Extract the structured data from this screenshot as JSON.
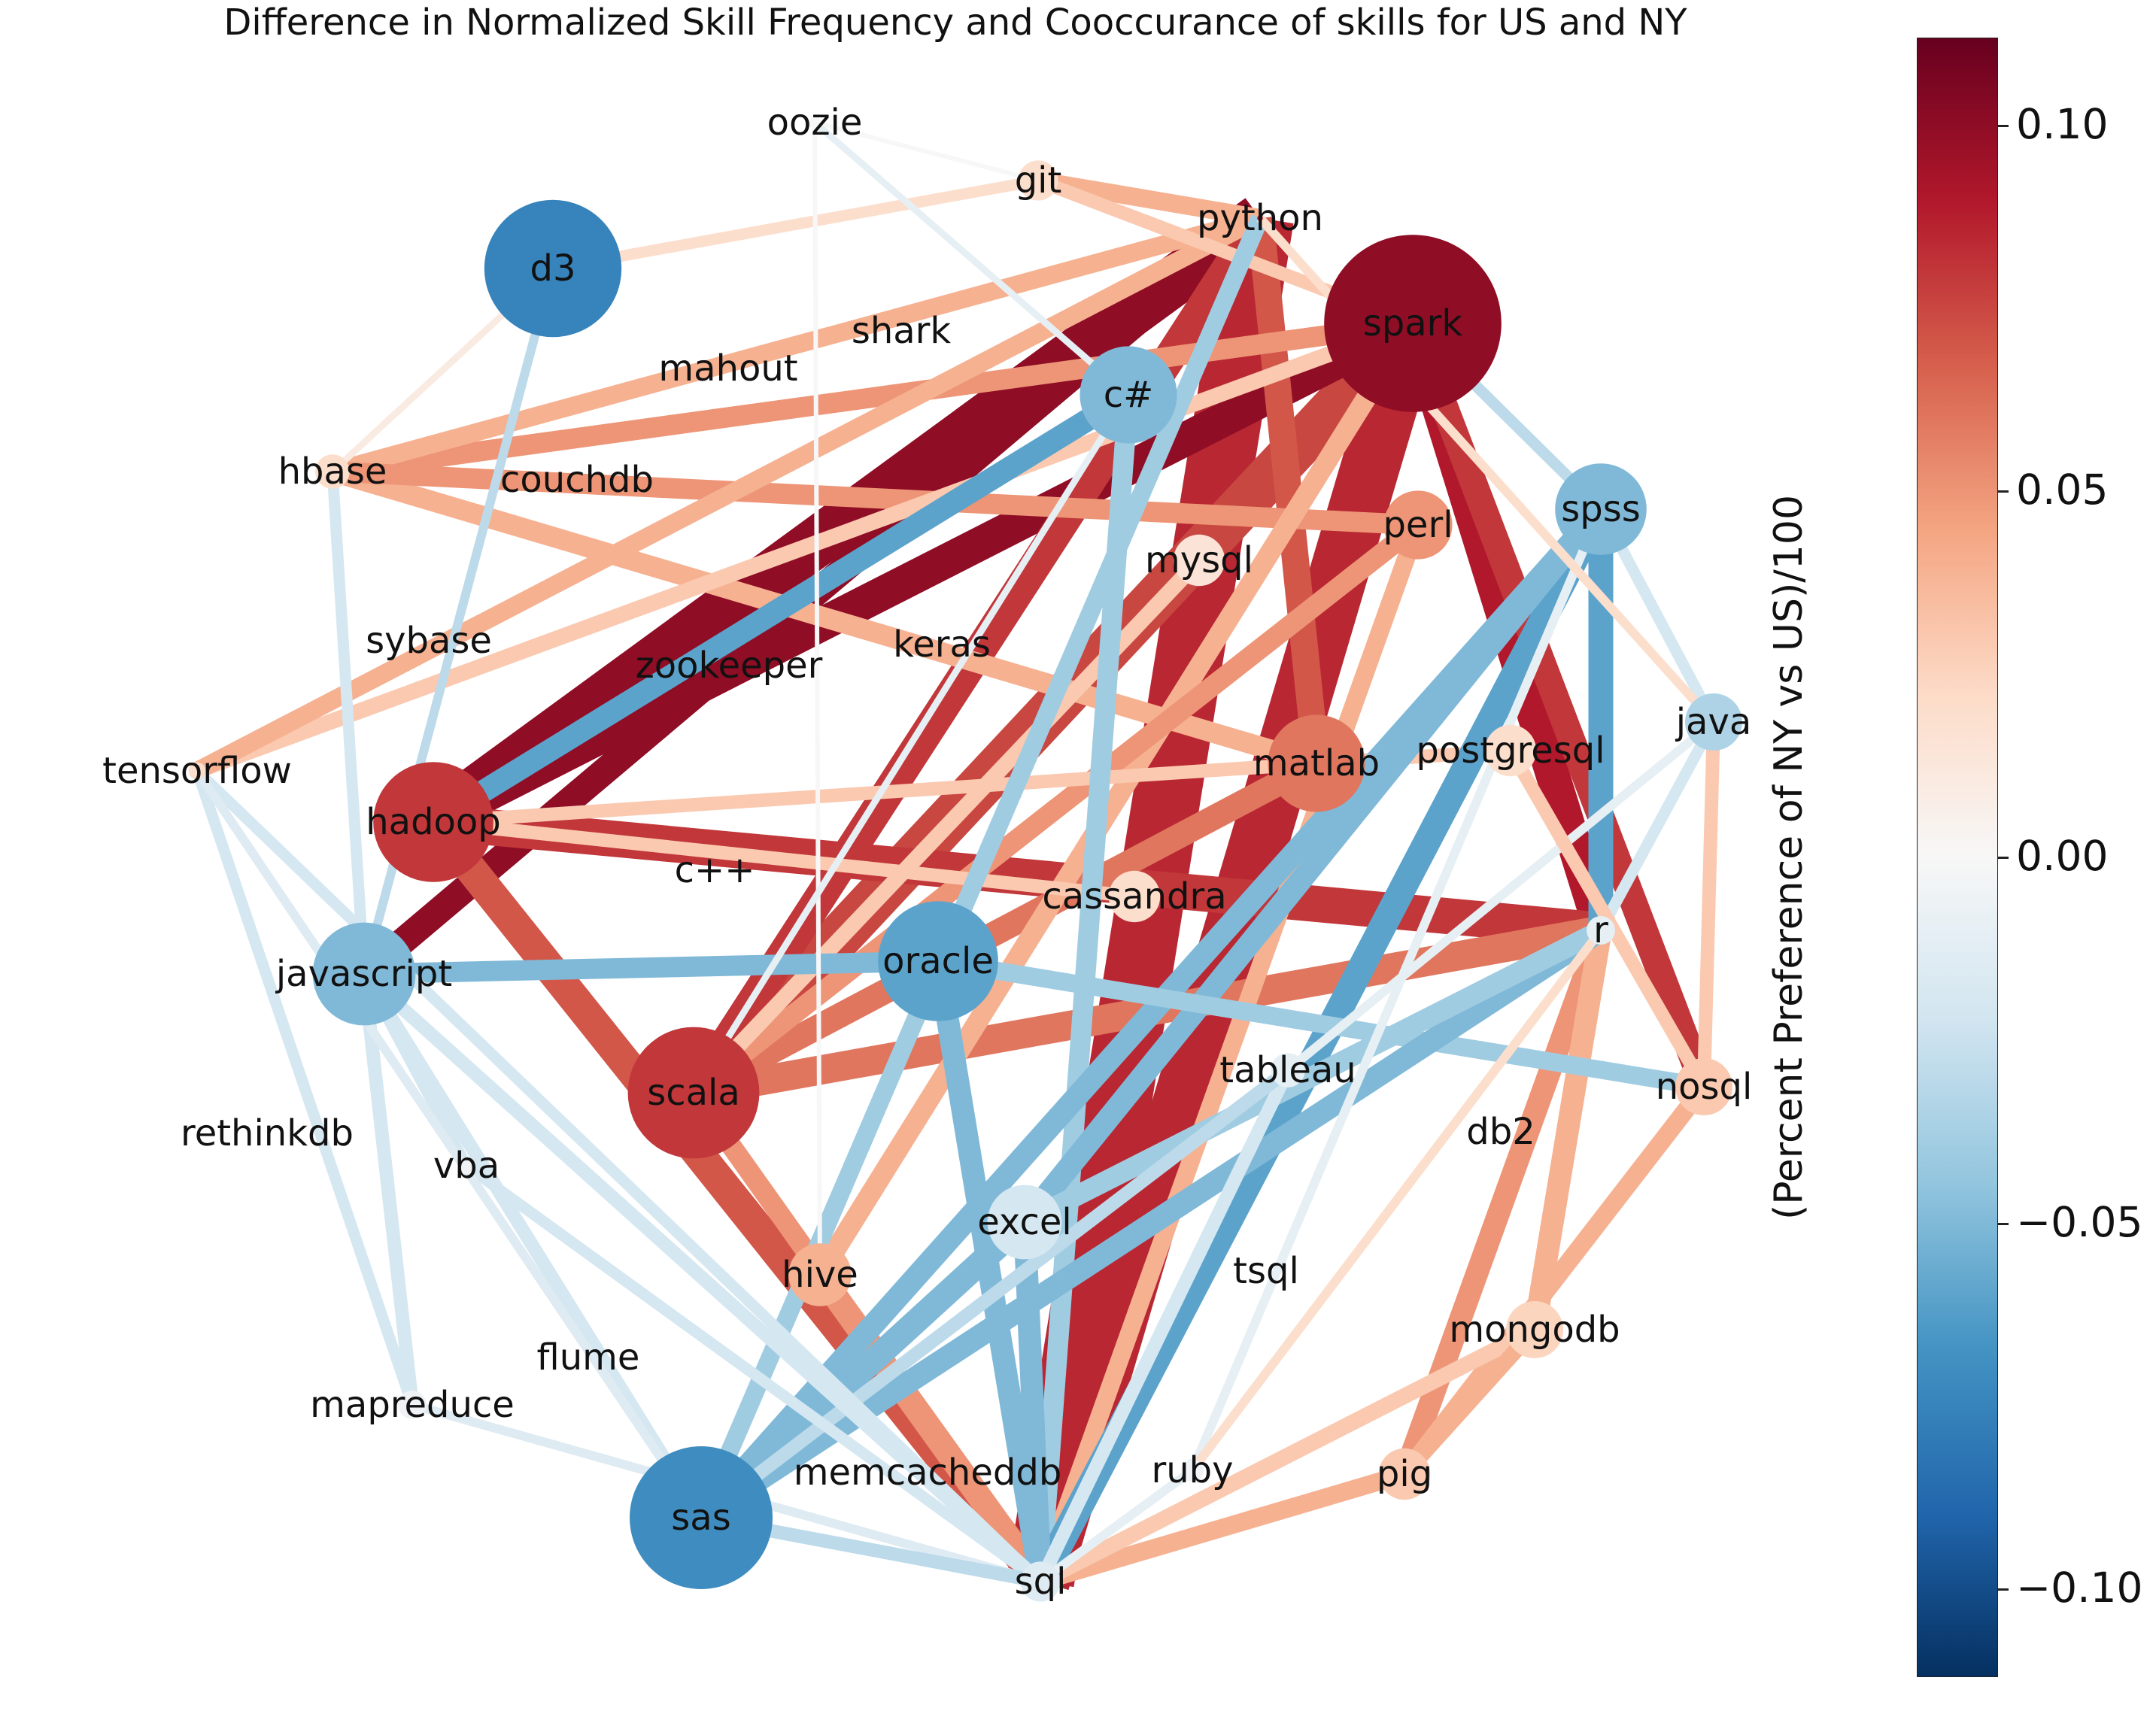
{
  "title": "Difference in Normalized Skill Frequency and Cooccurance of skills for US and NY",
  "colorbar": {
    "label": "(Percent Preference of NY vs US)/100",
    "min": -0.112,
    "max": 0.112,
    "ticks": [
      "0.10",
      "0.05",
      "0.00",
      "−0.05",
      "−0.10"
    ],
    "tick_values": [
      0.1,
      0.05,
      0.0,
      -0.05,
      -0.1
    ],
    "colormap": [
      "#053061",
      "#2166ac",
      "#4393c3",
      "#92c5de",
      "#d1e5f0",
      "#f7f7f7",
      "#fddbc7",
      "#f4a582",
      "#d6604d",
      "#b2182b",
      "#67001f"
    ]
  },
  "nodes": [
    {
      "id": "oozie",
      "label": "oozie",
      "value": 0.0,
      "size": 0.2
    },
    {
      "id": "git",
      "label": "git",
      "value": 0.02,
      "size": 0.7
    },
    {
      "id": "python",
      "label": "python",
      "value": 0.09,
      "size": 0.1
    },
    {
      "id": "spark",
      "label": "spark",
      "value": 0.1,
      "size": 3.1
    },
    {
      "id": "d3",
      "label": "d3",
      "value": -0.075,
      "size": 2.4
    },
    {
      "id": "shark",
      "label": "shark",
      "value": 0.0,
      "size": 0.0
    },
    {
      "id": "mahout",
      "label": "mahout",
      "value": 0.0,
      "size": 0.0
    },
    {
      "id": "c#",
      "label": "c#",
      "value": -0.05,
      "size": 1.7
    },
    {
      "id": "hbase",
      "label": "hbase",
      "value": 0.02,
      "size": 0.6
    },
    {
      "id": "couchdb",
      "label": "couchdb",
      "value": 0.0,
      "size": 0.0
    },
    {
      "id": "spss",
      "label": "spss",
      "value": -0.05,
      "size": 1.6
    },
    {
      "id": "perl",
      "label": "perl",
      "value": 0.05,
      "size": 1.2
    },
    {
      "id": "mysql",
      "label": "mysql",
      "value": 0.015,
      "size": 0.9
    },
    {
      "id": "sybase",
      "label": "sybase",
      "value": 0.0,
      "size": 0.0
    },
    {
      "id": "keras",
      "label": "keras",
      "value": 0.0,
      "size": 0.0
    },
    {
      "id": "zookeeper",
      "label": "zookeeper",
      "value": 0.0,
      "size": 0.0
    },
    {
      "id": "java",
      "label": "java",
      "value": -0.035,
      "size": 1.0
    },
    {
      "id": "tensorflow",
      "label": "tensorflow",
      "value": 0.02,
      "size": 0.3
    },
    {
      "id": "matlab",
      "label": "matlab",
      "value": 0.06,
      "size": 1.7
    },
    {
      "id": "postgresql",
      "label": "postgresql",
      "value": 0.02,
      "size": 0.9
    },
    {
      "id": "hadoop",
      "label": "hadoop",
      "value": 0.08,
      "size": 2.1
    },
    {
      "id": "c++",
      "label": "c++",
      "value": 0.0,
      "size": 0.0
    },
    {
      "id": "cassandra",
      "label": "cassandra",
      "value": 0.02,
      "size": 0.9
    },
    {
      "id": "r",
      "label": "r",
      "value": -0.01,
      "size": 0.5
    },
    {
      "id": "javascript",
      "label": "javascript",
      "value": -0.05,
      "size": 1.8
    },
    {
      "id": "oracle",
      "label": "oracle",
      "value": -0.06,
      "size": 2.1
    },
    {
      "id": "scala",
      "label": "scala",
      "value": 0.08,
      "size": 2.3
    },
    {
      "id": "tableau",
      "label": "tableau",
      "value": -0.01,
      "size": 0.6
    },
    {
      "id": "nosql",
      "label": "nosql",
      "value": 0.03,
      "size": 1.0
    },
    {
      "id": "rethinkdb",
      "label": "rethinkdb",
      "value": 0.0,
      "size": 0.0
    },
    {
      "id": "vba",
      "label": "vba",
      "value": -0.005,
      "size": 0.3
    },
    {
      "id": "db2",
      "label": "db2",
      "value": 0.0,
      "size": 0.0
    },
    {
      "id": "excel",
      "label": "excel",
      "value": -0.02,
      "size": 1.3
    },
    {
      "id": "hive",
      "label": "hive",
      "value": 0.04,
      "size": 1.1
    },
    {
      "id": "tsql",
      "label": "tsql",
      "value": 0.0,
      "size": 0.0
    },
    {
      "id": "mongodb",
      "label": "mongodb",
      "value": 0.025,
      "size": 1.0
    },
    {
      "id": "flume",
      "label": "flume",
      "value": 0.0,
      "size": 0.0
    },
    {
      "id": "mapreduce",
      "label": "mapreduce",
      "value": -0.005,
      "size": 0.5
    },
    {
      "id": "sas",
      "label": "sas",
      "value": -0.07,
      "size": 2.5
    },
    {
      "id": "memcacheddb",
      "label": "memcacheddb",
      "value": 0.0,
      "size": 0.0
    },
    {
      "id": "ruby",
      "label": "ruby",
      "value": -0.005,
      "size": 0.4
    },
    {
      "id": "pig",
      "label": "pig",
      "value": 0.03,
      "size": 0.9
    },
    {
      "id": "sql",
      "label": "sql",
      "value": -0.015,
      "size": 0.7
    }
  ],
  "edges": [
    {
      "source": "python",
      "target": "sql",
      "value": 0.085,
      "width": 3.0
    },
    {
      "source": "spark",
      "target": "sql",
      "value": 0.085,
      "width": 2.6
    },
    {
      "source": "spark",
      "target": "scala",
      "value": 0.075,
      "width": 2.0
    },
    {
      "source": "python",
      "target": "hadoop",
      "value": 0.1,
      "width": 2.2
    },
    {
      "source": "spark",
      "target": "hadoop",
      "value": 0.1,
      "width": 1.5
    },
    {
      "source": "python",
      "target": "javascript",
      "value": 0.1,
      "width": 1.2
    },
    {
      "source": "spark",
      "target": "r",
      "value": 0.09,
      "width": 1.5
    },
    {
      "source": "spark",
      "target": "nosql",
      "value": 0.08,
      "width": 1.2
    },
    {
      "source": "python",
      "target": "scala",
      "value": 0.08,
      "width": 1.4
    },
    {
      "source": "python",
      "target": "matlab",
      "value": 0.07,
      "width": 1.2
    },
    {
      "source": "hadoop",
      "target": "r",
      "value": 0.08,
      "width": 1.6
    },
    {
      "source": "scala",
      "target": "r",
      "value": 0.06,
      "width": 1.3
    },
    {
      "source": "hadoop",
      "target": "sql",
      "value": 0.07,
      "width": 1.4
    },
    {
      "source": "matlab",
      "target": "scala",
      "value": 0.06,
      "width": 1.1
    },
    {
      "source": "r",
      "target": "pig",
      "value": 0.05,
      "width": 1.0
    },
    {
      "source": "r",
      "target": "mongodb",
      "value": 0.04,
      "width": 1.0
    },
    {
      "source": "hbase",
      "target": "spark",
      "value": 0.05,
      "width": 0.9
    },
    {
      "source": "hbase",
      "target": "python",
      "value": 0.04,
      "width": 0.8
    },
    {
      "source": "hbase",
      "target": "matlab",
      "value": 0.04,
      "width": 0.9
    },
    {
      "source": "hbase",
      "target": "perl",
      "value": 0.05,
      "width": 0.9
    },
    {
      "source": "tensorflow",
      "target": "spark",
      "value": 0.03,
      "width": 0.7
    },
    {
      "source": "tensorflow",
      "target": "python",
      "value": 0.04,
      "width": 0.8
    },
    {
      "source": "git",
      "target": "python",
      "value": 0.04,
      "width": 0.8
    },
    {
      "source": "git",
      "target": "spark",
      "value": 0.03,
      "width": 0.6
    },
    {
      "source": "d3",
      "target": "git",
      "value": 0.02,
      "width": 0.5
    },
    {
      "source": "hive",
      "target": "sql",
      "value": 0.05,
      "width": 1.1
    },
    {
      "source": "hive",
      "target": "spark",
      "value": 0.04,
      "width": 0.9
    },
    {
      "source": "scala",
      "target": "sql",
      "value": 0.05,
      "width": 0.9
    },
    {
      "source": "pig",
      "target": "sql",
      "value": 0.04,
      "width": 0.8
    },
    {
      "source": "nosql",
      "target": "pig",
      "value": 0.04,
      "width": 0.8
    },
    {
      "source": "mongodb",
      "target": "sql",
      "value": 0.03,
      "width": 0.7
    },
    {
      "source": "perl",
      "target": "sql",
      "value": 0.04,
      "width": 0.8
    },
    {
      "source": "perl",
      "target": "scala",
      "value": 0.05,
      "width": 0.9
    },
    {
      "source": "mysql",
      "target": "scala",
      "value": 0.03,
      "width": 0.7
    },
    {
      "source": "postgresql",
      "target": "hadoop",
      "value": 0.03,
      "width": 0.6
    },
    {
      "source": "cassandra",
      "target": "hadoop",
      "value": 0.03,
      "width": 0.6
    },
    {
      "source": "c#",
      "target": "sql",
      "value": -0.04,
      "width": 0.9
    },
    {
      "source": "c#",
      "target": "hadoop",
      "value": -0.06,
      "width": 1.0
    },
    {
      "source": "python",
      "target": "sas",
      "value": -0.04,
      "width": 0.8
    },
    {
      "source": "spss",
      "target": "sql",
      "value": -0.06,
      "width": 1.2
    },
    {
      "source": "spss",
      "target": "r",
      "value": -0.06,
      "width": 1.1
    },
    {
      "source": "spss",
      "target": "sas",
      "value": -0.05,
      "width": 1.0
    },
    {
      "source": "spss",
      "target": "excel",
      "value": -0.05,
      "width": 1.0
    },
    {
      "source": "oracle",
      "target": "sql",
      "value": -0.05,
      "width": 1.0
    },
    {
      "source": "oracle",
      "target": "javascript",
      "value": -0.05,
      "width": 0.9
    },
    {
      "source": "oracle",
      "target": "nosql",
      "value": -0.04,
      "width": 0.8
    },
    {
      "source": "excel",
      "target": "sql",
      "value": -0.05,
      "width": 1.0
    },
    {
      "source": "excel",
      "target": "sas",
      "value": -0.05,
      "width": 1.1
    },
    {
      "source": "r",
      "target": "sas",
      "value": -0.05,
      "width": 1.0
    },
    {
      "source": "r",
      "target": "excel",
      "value": -0.04,
      "width": 0.9
    },
    {
      "source": "tableau",
      "target": "sql",
      "value": -0.02,
      "width": 0.6
    },
    {
      "source": "tableau",
      "target": "sas",
      "value": -0.03,
      "width": 0.6
    },
    {
      "source": "javascript",
      "target": "sql",
      "value": -0.02,
      "width": 0.6
    },
    {
      "source": "javascript",
      "target": "sas",
      "value": -0.02,
      "width": 0.6
    },
    {
      "source": "mapreduce",
      "target": "javascript",
      "value": -0.02,
      "width": 0.6
    },
    {
      "source": "mapreduce",
      "target": "tensorflow",
      "value": -0.02,
      "width": 0.5
    },
    {
      "source": "mapreduce",
      "target": "sql",
      "value": -0.015,
      "width": 0.4
    },
    {
      "source": "vba",
      "target": "sql",
      "value": -0.02,
      "width": 0.5
    },
    {
      "source": "vba",
      "target": "javascript",
      "value": -0.02,
      "width": 0.5
    },
    {
      "source": "tensorflow",
      "target": "sql",
      "value": -0.02,
      "width": 0.5
    },
    {
      "source": "tensorflow",
      "target": "sas",
      "value": -0.015,
      "width": 0.4
    },
    {
      "source": "hbase",
      "target": "javascript",
      "value": -0.02,
      "width": 0.5
    },
    {
      "source": "java",
      "target": "spss",
      "value": -0.02,
      "width": 0.5
    },
    {
      "source": "java",
      "target": "r",
      "value": -0.02,
      "width": 0.5
    },
    {
      "source": "java",
      "target": "nosql",
      "value": 0.03,
      "width": 0.6
    },
    {
      "source": "java",
      "target": "tableau",
      "value": -0.01,
      "width": 0.4
    },
    {
      "source": "spark",
      "target": "spss",
      "value": -0.03,
      "width": 0.5
    },
    {
      "source": "oozie",
      "target": "git",
      "value": 0.0,
      "width": 0.2
    },
    {
      "source": "oozie",
      "target": "c#",
      "value": -0.01,
      "width": 0.3
    },
    {
      "source": "oozie",
      "target": "hive",
      "value": 0.0,
      "width": 0.2
    },
    {
      "source": "d3",
      "target": "javascript",
      "value": -0.03,
      "width": 0.4
    },
    {
      "source": "d3",
      "target": "hbase",
      "value": 0.01,
      "width": 0.3
    },
    {
      "source": "ruby",
      "target": "spss",
      "value": -0.01,
      "width": 0.4
    },
    {
      "source": "ruby",
      "target": "r",
      "value": 0.02,
      "width": 0.4
    },
    {
      "source": "ruby",
      "target": "sql",
      "value": -0.01,
      "width": 0.4
    },
    {
      "source": "sas",
      "target": "sql",
      "value": -0.03,
      "width": 0.6
    },
    {
      "source": "mongodb",
      "target": "pig",
      "value": 0.04,
      "width": 0.7
    },
    {
      "source": "postgresql",
      "target": "nosql",
      "value": 0.03,
      "width": 0.6
    },
    {
      "source": "java",
      "target": "python",
      "value": 0.02,
      "width": 0.4
    },
    {
      "source": "c#",
      "target": "scala",
      "value": -0.01,
      "width": 0.3
    }
  ]
}
